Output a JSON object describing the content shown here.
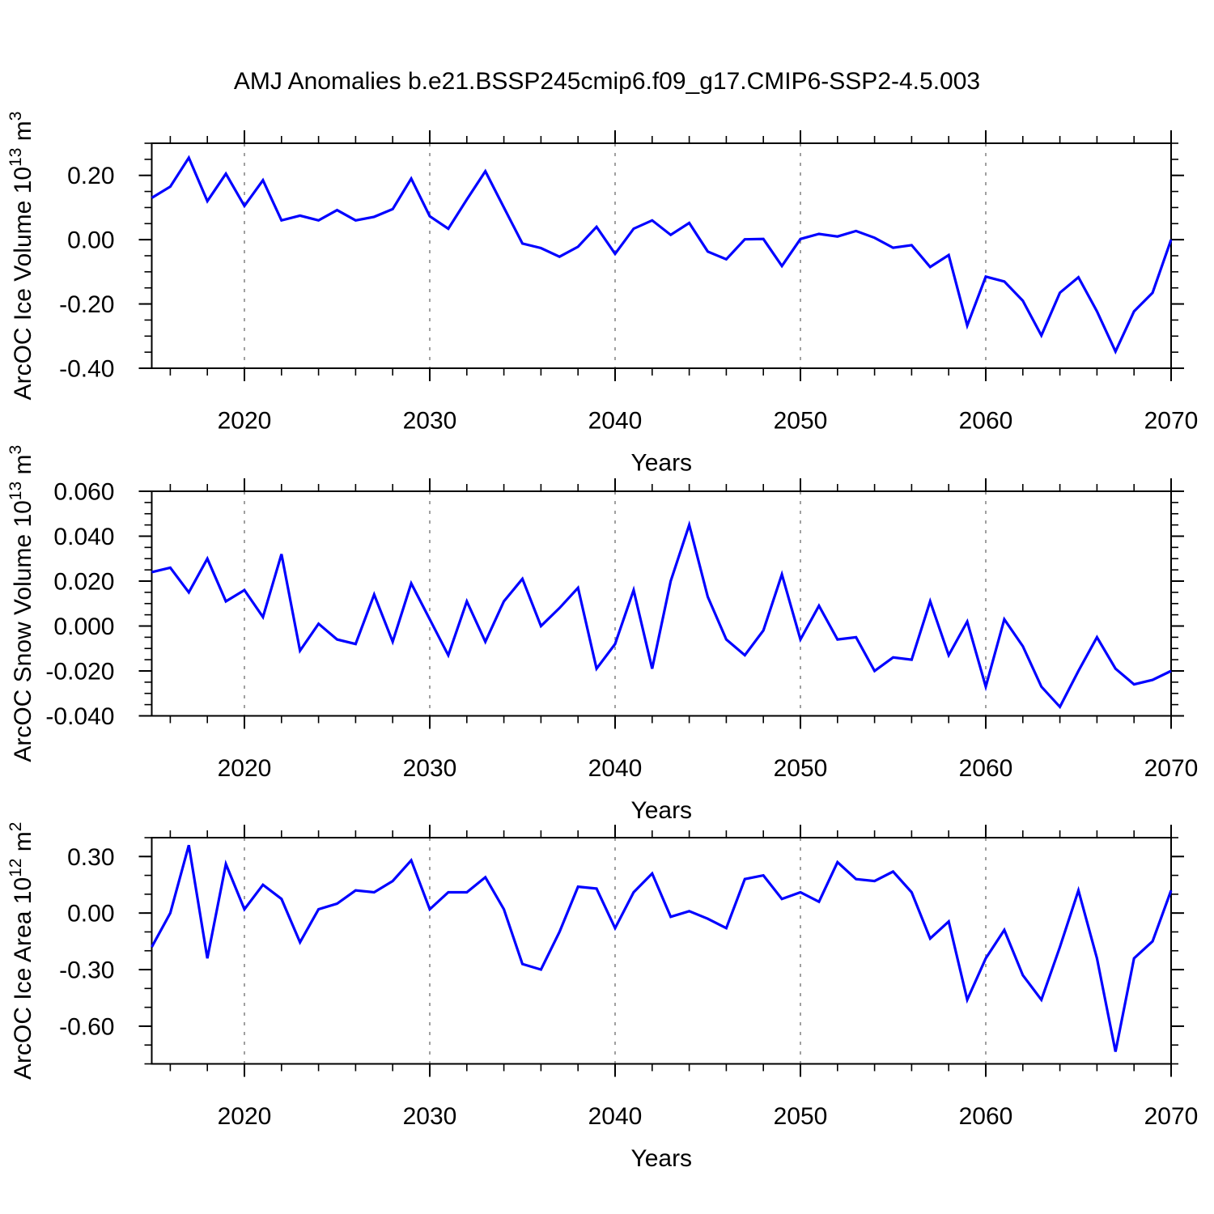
{
  "title": "AMJ Anomalies b.e21.BSSP245cmip6.f09_g17.CMIP6-SSP2-4.5.003",
  "xlabel": "Years",
  "colors": {
    "line": "#0000ff",
    "frame": "#000000",
    "grid": "#808080",
    "text": "#000000"
  },
  "x_axis": {
    "start": 2015,
    "end": 2070,
    "major_ticks": [
      {
        "value": 2020,
        "label": "2020"
      },
      {
        "value": 2030,
        "label": "2030"
      },
      {
        "value": 2040,
        "label": "2040"
      },
      {
        "value": 2050,
        "label": "2050"
      },
      {
        "value": 2060,
        "label": "2060"
      },
      {
        "value": 2070,
        "label": "2070"
      }
    ],
    "minor_step": 2,
    "gridlines": [
      2020,
      2030,
      2040,
      2050,
      2060
    ]
  },
  "chart_data": [
    {
      "type": "line",
      "id": "ice-volume",
      "ylabel": "ArcOC Ice Volume 10^13 m^3",
      "ylabel_parts": {
        "base": "ArcOC Ice Volume 10",
        "exp": "13",
        "unit": " m",
        "unit_exp": "3"
      },
      "xlabel": "Years",
      "x_start": 2015,
      "x_end": 2070,
      "ylim": [
        -0.4,
        0.3
      ],
      "y_minor_step": 0.05,
      "yticks": [
        {
          "value": 0.2,
          "label": "0.20"
        },
        {
          "value": 0.0,
          "label": "0.00"
        },
        {
          "value": -0.2,
          "label": "-0.20"
        },
        {
          "value": -0.4,
          "label": "-0.40"
        }
      ],
      "values": [
        0.13,
        0.165,
        0.255,
        0.12,
        0.205,
        0.105,
        0.185,
        0.06,
        0.075,
        0.06,
        0.092,
        0.06,
        0.071,
        0.095,
        0.19,
        0.073,
        0.034,
        0.125,
        0.213,
        0.1,
        -0.012,
        -0.026,
        -0.053,
        -0.022,
        0.04,
        -0.044,
        0.034,
        0.06,
        0.015,
        0.052,
        -0.037,
        -0.061,
        0.001,
        0.002,
        -0.082,
        0.002,
        0.018,
        0.01,
        0.027,
        0.006,
        -0.025,
        -0.017,
        -0.085,
        -0.048,
        -0.267,
        -0.115,
        -0.13,
        -0.19,
        -0.298,
        -0.165,
        -0.117,
        -0.223,
        -0.348,
        -0.223,
        -0.165,
        0.0
      ]
    },
    {
      "type": "line",
      "id": "snow-volume",
      "ylabel": "ArcOC Snow Volume 10^13 m^3",
      "ylabel_parts": {
        "base": "ArcOC Snow Volume 10",
        "exp": "13",
        "unit": " m",
        "unit_exp": "3"
      },
      "xlabel": "Years",
      "x_start": 2015,
      "x_end": 2070,
      "ylim": [
        -0.04,
        0.06
      ],
      "y_minor_step": 0.005,
      "yticks": [
        {
          "value": 0.06,
          "label": "0.060"
        },
        {
          "value": 0.04,
          "label": "0.040"
        },
        {
          "value": 0.02,
          "label": "0.020"
        },
        {
          "value": 0.0,
          "label": "0.000"
        },
        {
          "value": -0.02,
          "label": "-0.020"
        },
        {
          "value": -0.04,
          "label": "-0.040"
        }
      ],
      "values": [
        0.024,
        0.026,
        0.015,
        0.03,
        0.011,
        0.016,
        0.004,
        0.032,
        -0.011,
        0.001,
        -0.006,
        -0.008,
        0.014,
        -0.007,
        0.019,
        0.003,
        -0.013,
        0.011,
        -0.007,
        0.011,
        0.021,
        0.0,
        0.008,
        0.017,
        -0.019,
        -0.008,
        0.016,
        -0.019,
        0.02,
        0.045,
        0.013,
        -0.006,
        -0.013,
        -0.002,
        0.023,
        -0.006,
        0.009,
        -0.006,
        -0.005,
        -0.02,
        -0.014,
        -0.015,
        0.011,
        -0.013,
        0.002,
        -0.027,
        0.003,
        -0.009,
        -0.027,
        -0.036,
        -0.02,
        -0.005,
        -0.019,
        -0.026,
        -0.024,
        -0.02
      ]
    },
    {
      "type": "line",
      "id": "ice-area",
      "ylabel": "ArcOC Ice Area 10^12 m^2",
      "ylabel_parts": {
        "base": "ArcOC Ice Area 10",
        "exp": "12",
        "unit": " m",
        "unit_exp": "2"
      },
      "xlabel": "Years",
      "x_start": 2015,
      "x_end": 2070,
      "ylim": [
        -0.8,
        0.4
      ],
      "y_minor_step": 0.1,
      "yticks": [
        {
          "value": 0.3,
          "label": "0.30"
        },
        {
          "value": 0.0,
          "label": "0.00"
        },
        {
          "value": -0.3,
          "label": "-0.30"
        },
        {
          "value": -0.6,
          "label": "-0.60"
        }
      ],
      "values": [
        -0.18,
        0.0,
        0.36,
        -0.24,
        0.26,
        0.02,
        0.15,
        0.075,
        -0.155,
        0.02,
        0.05,
        0.12,
        0.11,
        0.17,
        0.28,
        0.02,
        0.11,
        0.11,
        0.19,
        0.02,
        -0.27,
        -0.3,
        -0.1,
        0.14,
        0.13,
        -0.08,
        0.11,
        0.21,
        -0.02,
        0.01,
        -0.03,
        -0.08,
        0.18,
        0.2,
        0.075,
        0.11,
        0.06,
        0.27,
        0.18,
        0.17,
        0.22,
        0.11,
        -0.135,
        -0.045,
        -0.46,
        -0.24,
        -0.09,
        -0.33,
        -0.46,
        -0.18,
        0.12,
        -0.24,
        -0.735,
        -0.24,
        -0.15,
        0.12
      ]
    }
  ]
}
